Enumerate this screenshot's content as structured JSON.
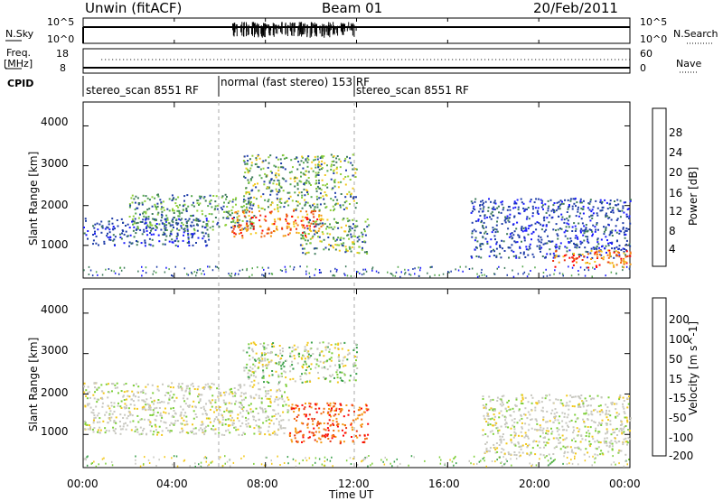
{
  "header": {
    "station": "Unwin",
    "mode": "(fitACF)",
    "beam": "Beam 01",
    "date": "20/Feb/2011"
  },
  "top_panels": {
    "nsky_label": "N.Sky",
    "nsky_ticks": [
      "10^5",
      "10^0"
    ],
    "nsearch_label": "N.Search",
    "nsearch_ticks": [
      "10^5",
      "10^0"
    ],
    "freq_label_line1": "Freq.",
    "freq_label_line2": "[MHz]",
    "freq_ticks": [
      "18",
      "8"
    ],
    "nave_label": "Nave",
    "nave_ticks": [
      "60",
      "0"
    ],
    "cpid_label": "CPID",
    "cpid_segments": [
      {
        "label": "stereo_scan 8551 RF",
        "start": 0,
        "end": 6
      },
      {
        "label": "normal (fast stereo) 153 RF",
        "start": 6,
        "end": 12
      },
      {
        "label": "stereo_scan 8551 RF",
        "start": 12,
        "end": 24
      }
    ]
  },
  "x_axis": {
    "label": "Time UT",
    "ticks": [
      "00:00",
      "04:00",
      "08:00",
      "12:00",
      "16:00",
      "20:00",
      "00:00"
    ]
  },
  "chart_data": [
    {
      "type": "heatmap",
      "title": "Power",
      "ylabel": "Slant Range [km]",
      "xlabel": "Time UT",
      "xlim": [
        0,
        24
      ],
      "ylim": [
        180,
        4600
      ],
      "yticks": [
        1000,
        2000,
        3000,
        4000
      ],
      "colorbar": {
        "label": "Power [dB]",
        "ticks": [
          "4",
          "8",
          "12",
          "16",
          "20",
          "24",
          "28"
        ],
        "colors": [
          "#1a1aff",
          "#1f3da8",
          "#3d7a5a",
          "#55a84e",
          "#8fcf3a",
          "#f2c81a",
          "#f59a14",
          "#f06a10",
          "#e83010",
          "#ff0000"
        ]
      },
      "regions": [
        {
          "t_start": 0.0,
          "t_end": 5.5,
          "range_start": 1000,
          "range_end": 1700,
          "level": "low (~4-10 dB)"
        },
        {
          "t_start": 2.0,
          "t_end": 7.5,
          "range_start": 1400,
          "range_end": 2300,
          "level": "low-medium (~8-14 dB)"
        },
        {
          "t_start": 6.5,
          "t_end": 10.5,
          "range_start": 1200,
          "range_end": 1900,
          "level": "high (~20-30 dB)"
        },
        {
          "t_start": 7.0,
          "t_end": 12.0,
          "range_start": 1900,
          "range_end": 3300,
          "level": "medium (~10-18 dB)"
        },
        {
          "t_start": 9.5,
          "t_end": 12.5,
          "range_start": 800,
          "range_end": 1700,
          "level": "medium (~12-20 dB)"
        },
        {
          "t_start": 17.0,
          "t_end": 24.0,
          "range_start": 700,
          "range_end": 2200,
          "level": "low (~4-10 dB)"
        },
        {
          "t_start": 20.5,
          "t_end": 24.0,
          "range_start": 450,
          "range_end": 900,
          "level": "high (~18-28 dB)"
        }
      ]
    },
    {
      "type": "heatmap",
      "title": "Velocity",
      "ylabel": "Slant Range [km]",
      "xlabel": "Time UT",
      "xlim": [
        0,
        24
      ],
      "ylim": [
        180,
        4600
      ],
      "yticks": [
        1000,
        2000,
        3000,
        4000
      ],
      "colorbar": {
        "label": "Velocity [m s^-1]",
        "ticks": [
          "200",
          "100",
          "50",
          "15",
          "-15",
          "-50",
          "-100",
          "-200"
        ],
        "colors": [
          "#1a2fd8",
          "#2d6e6e",
          "#3aa04a",
          "#7ecf3a",
          "#c8c8c0",
          "#f2c81a",
          "#f59a14",
          "#f06a10",
          "#e83010",
          "#ff0000"
        ]
      },
      "regions": [
        {
          "t_start": 0.0,
          "t_end": 9.0,
          "range_start": 1000,
          "range_end": 2300,
          "velocity": "near zero (-15 to 15)"
        },
        {
          "t_start": 9.0,
          "t_end": 12.5,
          "range_start": 800,
          "range_end": 1800,
          "velocity": "strong negative (-100 to -200)"
        },
        {
          "t_start": 7.0,
          "t_end": 12.0,
          "range_start": 2300,
          "range_end": 3300,
          "velocity": "mixed near zero and positive (15 to 50)"
        },
        {
          "t_start": 17.5,
          "t_end": 24.0,
          "range_start": 500,
          "range_end": 2000,
          "velocity": "near zero (-15 to 15)"
        }
      ]
    }
  ]
}
